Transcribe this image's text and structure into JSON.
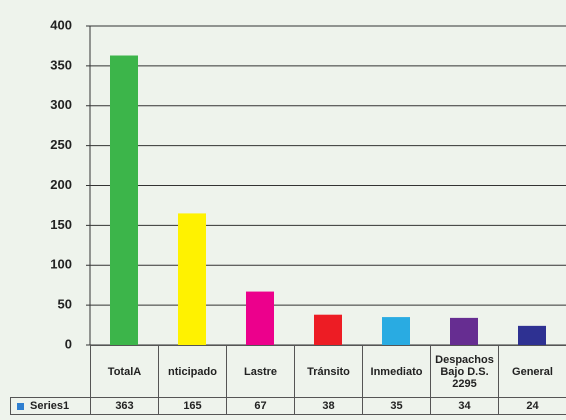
{
  "chart_data": {
    "type": "bar",
    "categories": [
      "TotalA",
      "nticipado",
      "Lastre",
      "Tránsito",
      "Inmediato",
      "Despachos Bajo D.S. 2295",
      "General"
    ],
    "series": [
      {
        "name": "Series1",
        "color": "#2f7fd0",
        "values": [
          363,
          165,
          67,
          38,
          35,
          34,
          24
        ],
        "colors": [
          "#3cb54a",
          "#fff200",
          "#ec008c",
          "#ed1c24",
          "#29abe2",
          "#662d91",
          "#2e3192"
        ]
      }
    ],
    "ylim": [
      0,
      400
    ],
    "yticks": [
      0,
      50,
      100,
      150,
      200,
      250,
      300,
      350,
      400
    ],
    "grid": true,
    "data_table": true
  }
}
